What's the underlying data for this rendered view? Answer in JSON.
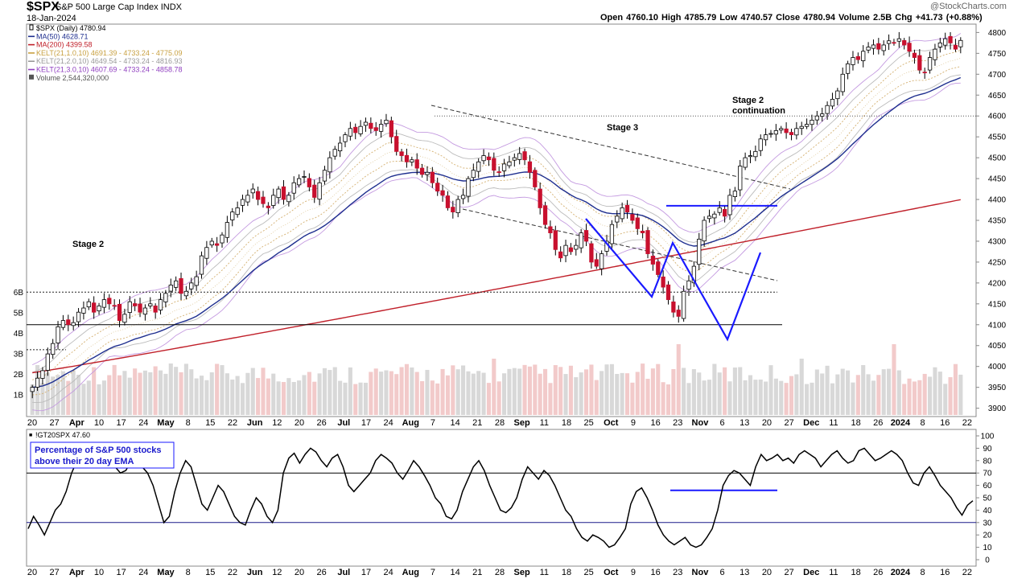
{
  "header": {
    "symbol": "$SPX",
    "name": "S&P 500 Large Cap Index",
    "exchange": "INDX",
    "date": "18-Jan-2024",
    "watermark": "@StockCharts.com",
    "quote": "Open 4760.10  High 4785.79  Low 4740.57  Close 4780.94  Volume 2.5B  Chg +41.73 (+0.88%)"
  },
  "legend": [
    {
      "text": "$SPX (Daily) 4780.94",
      "color": "#000000",
      "swatch": "candle"
    },
    {
      "text": "MA(50) 4628.71",
      "color": "#1f2f8f",
      "swatch": "line"
    },
    {
      "text": "MA(200) 4399.58",
      "color": "#c0202a",
      "swatch": "line"
    },
    {
      "text": "KELT(21,1.0,10) 4691.39 - 4733.24 - 4775.09",
      "color": "#c8a040",
      "swatch": "line"
    },
    {
      "text": "KELT(21,2.0,10) 4649.54 - 4733.24 - 4816.93",
      "color": "#999999",
      "swatch": "line"
    },
    {
      "text": "KELT(21,3.0,10) 4607.69 - 4733.24 - 4858.78",
      "color": "#9040c0",
      "swatch": "line"
    },
    {
      "text": "Volume 2,544,320,000",
      "color": "#555555",
      "swatch": "bars"
    }
  ],
  "annotations": {
    "stage2_left": "Stage 2",
    "stage3": "Stage 3",
    "stage2_cont_line1": "Stage 2",
    "stage2_cont_line2": "continuation",
    "lower_note_line1": "Percentage of S&P 500 stocks",
    "lower_note_line2": "above their 20 day EMA"
  },
  "lower_panel_title": "!GT20SPX 47.60",
  "colors": {
    "up": "#ffffff",
    "down": "#c8102e",
    "wick": "#000000",
    "ma50": "#1f2f8f",
    "ma200": "#c0202a",
    "kelt1": "#d4b070",
    "kelt2": "#bbbbbb",
    "kelt3": "#c49ae0",
    "vol_up": "#d8d8d8",
    "vol_down": "#f2caca",
    "blue": "#1a1aff"
  },
  "chart_data": [
    {
      "type": "candlestick",
      "title": "$SPX S&P 500 Large Cap Index INDX",
      "ylim": [
        3880,
        4820
      ],
      "yticks": [
        3900,
        3950,
        4000,
        4050,
        4100,
        4150,
        4200,
        4250,
        4300,
        4350,
        4400,
        4450,
        4500,
        4550,
        4600,
        4650,
        4700,
        4750,
        4800
      ],
      "volume_ticks": [
        "1B",
        "2B",
        "3B",
        "4B",
        "5B",
        "6B"
      ],
      "x_ticks": [
        "20",
        "27",
        "Apr",
        "10",
        "17",
        "24",
        "May",
        "8",
        "15",
        "22",
        "Jun",
        "12",
        "20",
        "26",
        "Jul",
        "17",
        "24",
        "Aug",
        "7",
        "14",
        "21",
        "28",
        "Sep",
        "11",
        "18",
        "25",
        "Oct",
        "9",
        "16",
        "23",
        "Nov",
        "6",
        "13",
        "20",
        "27",
        "Dec",
        "11",
        "18",
        "26",
        "2024",
        "8",
        "16",
        "22"
      ],
      "x_tick_bold": [
        "Apr",
        "May",
        "Jun",
        "Jul",
        "Aug",
        "Sep",
        "Oct",
        "Nov",
        "Dec",
        "2024"
      ],
      "close": [
        3950,
        3972,
        3990,
        4030,
        4055,
        4095,
        4110,
        4100,
        4105,
        4130,
        4140,
        4155,
        4130,
        4145,
        4160,
        4150,
        4145,
        4110,
        4125,
        4155,
        4145,
        4130,
        4140,
        4150,
        4130,
        4160,
        4175,
        4195,
        4205,
        4175,
        4180,
        4200,
        4215,
        4265,
        4285,
        4300,
        4290,
        4315,
        4345,
        4370,
        4380,
        4400,
        4410,
        4425,
        4400,
        4390,
        4380,
        4410,
        4425,
        4400,
        4410,
        4440,
        4450,
        4455,
        4430,
        4405,
        4440,
        4470,
        4500,
        4520,
        4535,
        4555,
        4570,
        4560,
        4575,
        4585,
        4570,
        4565,
        4580,
        4590,
        4550,
        4515,
        4505,
        4490,
        4495,
        4475,
        4460,
        4465,
        4440,
        4420,
        4410,
        4380,
        4370,
        4400,
        4410,
        4450,
        4470,
        4490,
        4505,
        4495,
        4470,
        4465,
        4485,
        4490,
        4500,
        4510,
        4495,
        4465,
        4430,
        4380,
        4340,
        4320,
        4280,
        4260,
        4290,
        4275,
        4290,
        4320,
        4300,
        4250,
        4240,
        4270,
        4300,
        4340,
        4360,
        4380,
        4370,
        4350,
        4330,
        4320,
        4270,
        4245,
        4220,
        4190,
        4160,
        4130,
        4120,
        4180,
        4205,
        4240,
        4305,
        4350,
        4360,
        4365,
        4380,
        4360,
        4410,
        4420,
        4480,
        4500,
        4505,
        4515,
        4545,
        4555,
        4558,
        4565,
        4570,
        4560,
        4555,
        4570,
        4575,
        4580,
        4590,
        4600,
        4605,
        4625,
        4640,
        4660,
        4700,
        4725,
        4740,
        4735,
        4755,
        4765,
        4770,
        4760,
        4770,
        4780,
        4775,
        4785,
        4770,
        4755,
        4740,
        4710,
        4705,
        4740,
        4760,
        4775,
        4785,
        4775,
        4760,
        4780.94
      ],
      "ma50_end": 4628.71,
      "ma200_end": 4399.58,
      "horizontal_levels": [
        4600,
        4385,
        4178,
        4100,
        4040
      ],
      "trendlines": [
        "upper dashed trendline from Jul high through Sep to Nov",
        "lower dashed trendline from Aug low through Oct to Nov"
      ],
      "pattern": "double bottom W drawn in blue"
    },
    {
      "type": "line",
      "title": "!GT20SPX 47.60",
      "ylim": [
        0,
        100
      ],
      "yticks": [
        0,
        10,
        20,
        30,
        40,
        50,
        60,
        70,
        80,
        90,
        100
      ],
      "reference_lines": [
        30,
        70
      ],
      "last": 47.6,
      "values": [
        25,
        35,
        28,
        20,
        30,
        40,
        45,
        55,
        70,
        80,
        85,
        75,
        82,
        88,
        78,
        85,
        75,
        70,
        72,
        80,
        82,
        75,
        70,
        60,
        45,
        30,
        35,
        55,
        70,
        80,
        75,
        60,
        45,
        40,
        50,
        60,
        55,
        45,
        35,
        30,
        28,
        40,
        50,
        45,
        35,
        30,
        40,
        70,
        82,
        86,
        78,
        85,
        90,
        87,
        80,
        75,
        82,
        85,
        75,
        60,
        55,
        60,
        65,
        70,
        80,
        85,
        82,
        78,
        70,
        65,
        72,
        80,
        75,
        68,
        60,
        50,
        45,
        35,
        33,
        40,
        55,
        65,
        75,
        80,
        72,
        60,
        50,
        40,
        38,
        42,
        50,
        65,
        75,
        70,
        65,
        72,
        68,
        60,
        50,
        40,
        35,
        25,
        18,
        15,
        20,
        18,
        15,
        10,
        12,
        18,
        25,
        45,
        55,
        58,
        50,
        40,
        28,
        20,
        15,
        12,
        15,
        18,
        12,
        10,
        12,
        18,
        25,
        40,
        60,
        68,
        72,
        70,
        65,
        60,
        75,
        85,
        80,
        82,
        85,
        80,
        82,
        78,
        85,
        88,
        85,
        82,
        75,
        80,
        85,
        88,
        82,
        78,
        80,
        88,
        90,
        85,
        80,
        82,
        85,
        88,
        85,
        80,
        70,
        62,
        60,
        70,
        75,
        68,
        60,
        55,
        50,
        42,
        36,
        44,
        47.6
      ],
      "highlight_level": 56
    }
  ]
}
